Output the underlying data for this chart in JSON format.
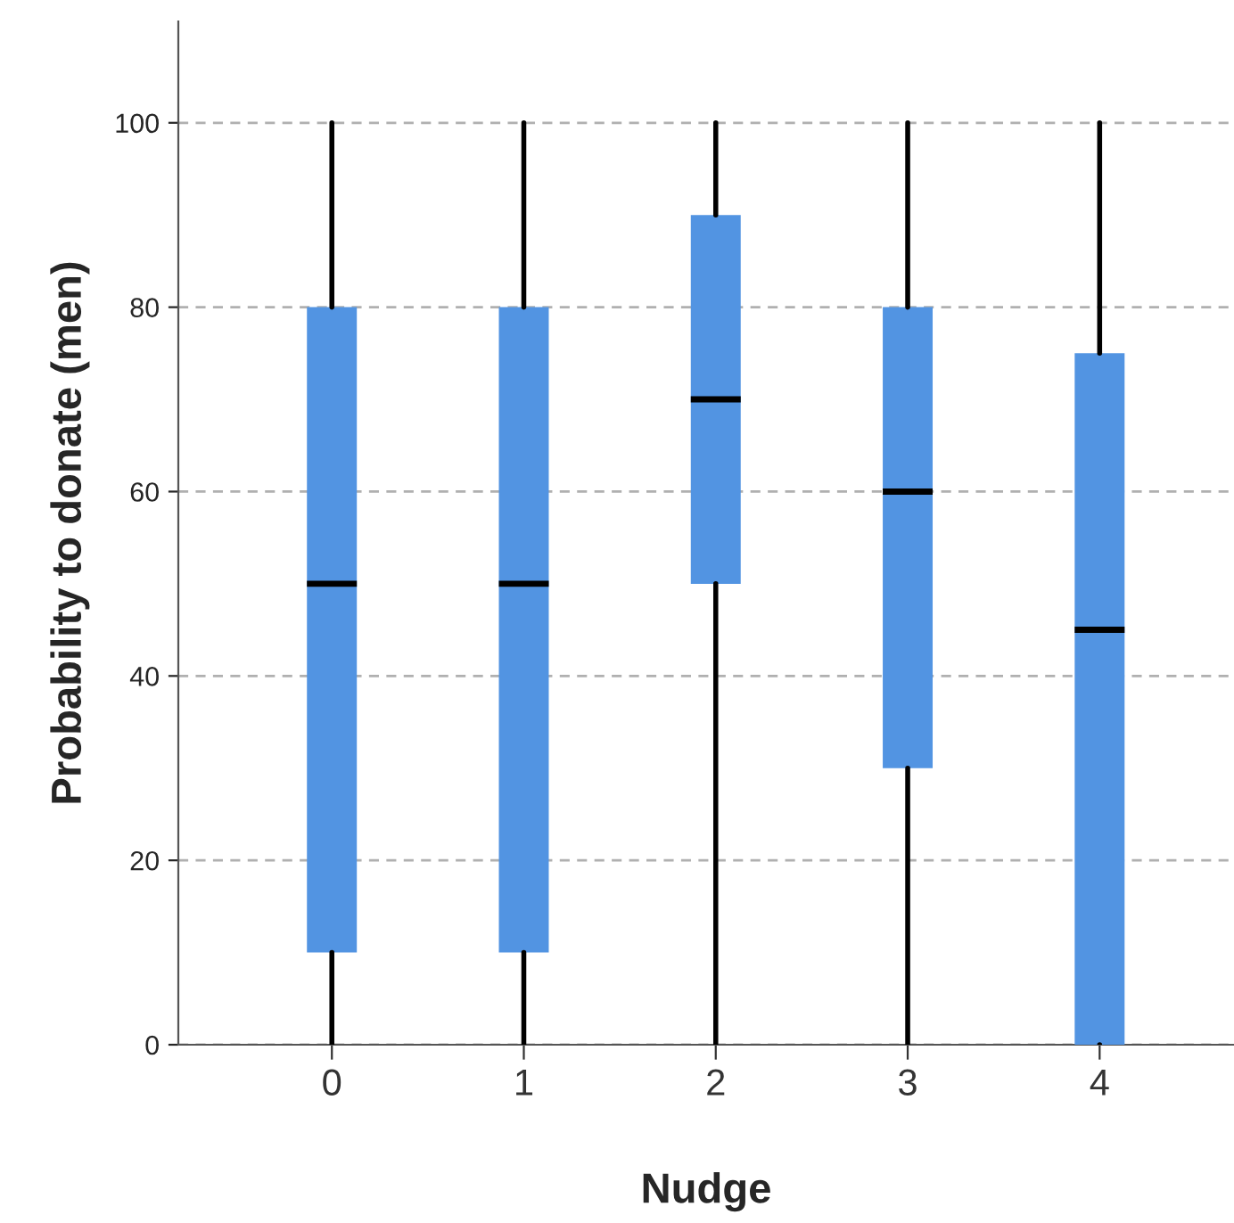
{
  "chart_data": {
    "type": "box",
    "xlabel": "Nudge",
    "ylabel": "Probability to donate (men)",
    "categories": [
      "0",
      "1",
      "2",
      "3",
      "4"
    ],
    "boxes": [
      {
        "low": 0,
        "q1": 10,
        "median": 50,
        "q3": 80,
        "high": 100
      },
      {
        "low": 0,
        "q1": 10,
        "median": 50,
        "q3": 80,
        "high": 100
      },
      {
        "low": 0,
        "q1": 50,
        "median": 70,
        "q3": 90,
        "high": 100
      },
      {
        "low": 0,
        "q1": 30,
        "median": 60,
        "q3": 80,
        "high": 100
      },
      {
        "low": 0,
        "q1": 0,
        "median": 45,
        "q3": 75,
        "high": 100
      }
    ],
    "color": "#5294e2",
    "ylim": [
      0,
      111
    ],
    "yticks": [
      0,
      20,
      40,
      60,
      80,
      100
    ],
    "grid": "y",
    "legend": false
  }
}
